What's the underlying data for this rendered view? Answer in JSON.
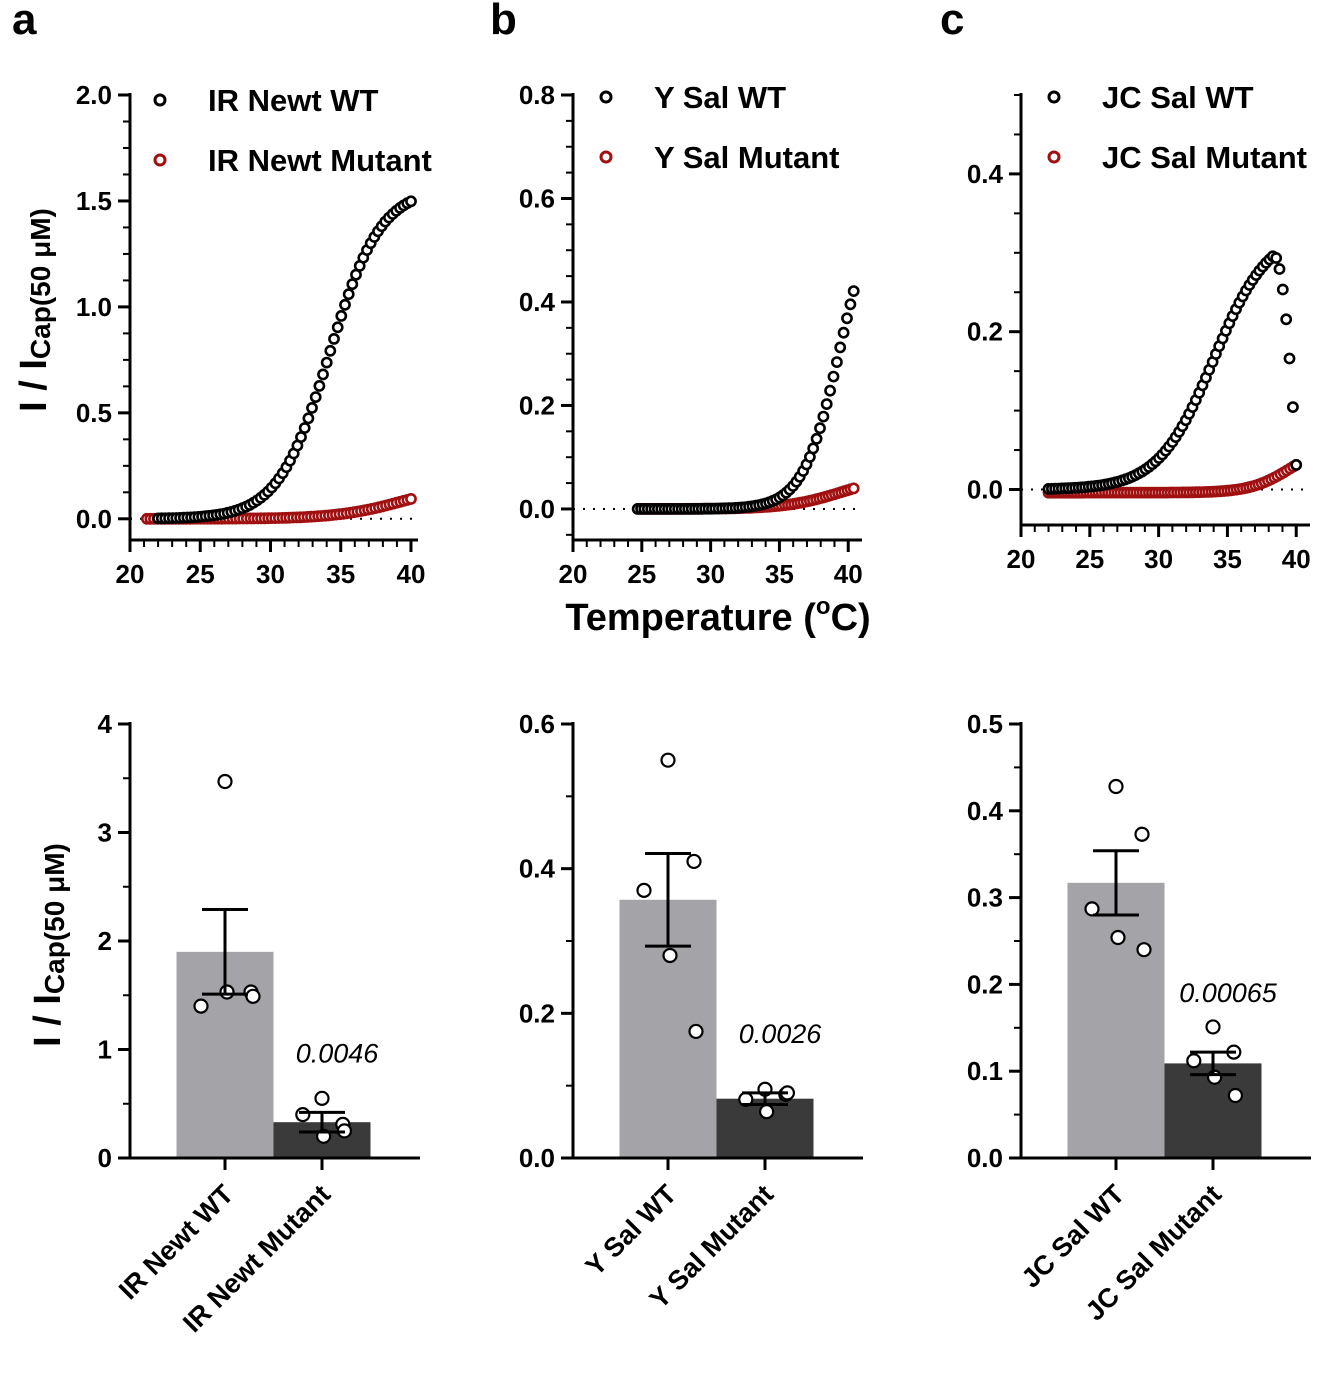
{
  "panel_labels": [
    "a",
    "b",
    "c"
  ],
  "y_axis_title": {
    "prefix": "I / I",
    "sub": "Cap(50 μM)"
  },
  "x_axis_title": {
    "main": "Temperature (",
    "sup": "o",
    "unit": "C)"
  },
  "colors": {
    "wt": "#000000",
    "mutant": "#a01010",
    "bar_wt": "#a3a3a8",
    "bar_mutant": "#3a3a3a"
  },
  "chart_data": [
    {
      "type": "scatter",
      "panel": "a",
      "legend": [
        "IR Newt WT",
        "IR Newt Mutant"
      ],
      "xlim": [
        20,
        40.5
      ],
      "ylim": [
        -0.1,
        2.0
      ],
      "xticks": [
        "20",
        "25",
        "30",
        "35",
        "40"
      ],
      "yticks": [
        "0.0",
        "0.5",
        "1.0",
        "1.5",
        "2.0"
      ],
      "series": [
        {
          "name": "IR Newt WT",
          "x0": 22.0,
          "x1": 40.0,
          "n": 70,
          "base": 0.0,
          "amp": 1.56,
          "mid": 34.2,
          "k": 0.55,
          "rise": 0
        },
        {
          "name": "IR Newt Mutant",
          "x0": 21.2,
          "x1": 40.0,
          "n": 75,
          "base": 0.0,
          "amp": 0.17,
          "mid": 39.5,
          "k": 0.42,
          "rise": 0
        }
      ]
    },
    {
      "type": "scatter",
      "panel": "b",
      "legend": [
        "Y Sal WT",
        "Y Sal Mutant"
      ],
      "xlim": [
        20,
        41
      ],
      "ylim": [
        -0.06,
        0.8
      ],
      "xticks": [
        "20",
        "25",
        "30",
        "35",
        "40"
      ],
      "yticks": [
        "0.0",
        "0.2",
        "0.4",
        "0.6",
        "0.8"
      ],
      "series": [
        {
          "name": "Y Sal WT",
          "x0": 24.7,
          "x1": 40.4,
          "n": 65,
          "base": 0.0,
          "amp": 0.62,
          "mid": 39.4,
          "k": 0.75,
          "rise": 0
        },
        {
          "name": "Y Sal Mutant",
          "x0": 24.7,
          "x1": 40.4,
          "n": 70,
          "base": 0.0,
          "amp": 0.065,
          "mid": 39.5,
          "k": 0.5,
          "rise": 0
        }
      ]
    },
    {
      "type": "scatter",
      "panel": "c",
      "legend": [
        "JC Sal WT",
        "JC Sal Mutant"
      ],
      "xlim": [
        20,
        41
      ],
      "ylim": [
        -0.045,
        0.5
      ],
      "xticks": [
        "20",
        "25",
        "30",
        "35",
        "40"
      ],
      "yticks": [
        "0.0",
        "0.2",
        "0.4"
      ],
      "series": [
        {
          "name": "JC Sal WT",
          "x0": 22.0,
          "x1": 40.0,
          "n": 75,
          "base": 0.0,
          "amp": 0.33,
          "mid": 34.0,
          "k": 0.5,
          "rise": 1
        },
        {
          "name": "JC Sal Mutant",
          "x0": 22.0,
          "x1": 40.0,
          "n": 80,
          "base": -0.004,
          "amp": 0.06,
          "mid": 39.5,
          "k": 0.7,
          "rise": 0
        }
      ]
    },
    {
      "type": "bar",
      "panel": "a",
      "categories": [
        "IR Newt WT",
        "IR Newt Mutant"
      ],
      "values": [
        1.9,
        0.33
      ],
      "sem": [
        0.39,
        0.09
      ],
      "points": [
        [
          3.47,
          1.53,
          1.4,
          1.53,
          1.49
        ],
        [
          0.55,
          0.31,
          0.4,
          0.2,
          0.25
        ]
      ],
      "ylim": [
        0,
        4
      ],
      "yticks": [
        "0",
        "1",
        "2",
        "3",
        "4"
      ],
      "minor_step": 0.5,
      "pvalue": "0.0046"
    },
    {
      "type": "bar",
      "panel": "b",
      "categories": [
        "Y Sal WT",
        "Y Sal Mutant"
      ],
      "values": [
        0.357,
        0.082
      ],
      "sem": [
        0.064,
        0.008
      ],
      "points": [
        [
          0.55,
          0.41,
          0.37,
          0.28,
          0.175
        ],
        [
          0.095,
          0.088,
          0.081,
          0.064,
          0.09
        ]
      ],
      "ylim": [
        0,
        0.6
      ],
      "yticks": [
        "0.0",
        "0.2",
        "0.4",
        "0.6"
      ],
      "minor_step": 0.1,
      "pvalue": "0.0026"
    },
    {
      "type": "bar",
      "panel": "c",
      "categories": [
        "JC Sal WT",
        "JC Sal Mutant"
      ],
      "values": [
        0.317,
        0.109
      ],
      "sem": [
        0.037,
        0.013
      ],
      "points": [
        [
          0.428,
          0.373,
          0.287,
          0.254,
          0.24
        ],
        [
          0.151,
          0.122,
          0.112,
          0.093,
          0.072
        ]
      ],
      "ylim": [
        0,
        0.5
      ],
      "yticks": [
        "0.0",
        "0.1",
        "0.2",
        "0.3",
        "0.4",
        "0.5"
      ],
      "minor_step": 0.05,
      "pvalue": "0.00065"
    }
  ]
}
